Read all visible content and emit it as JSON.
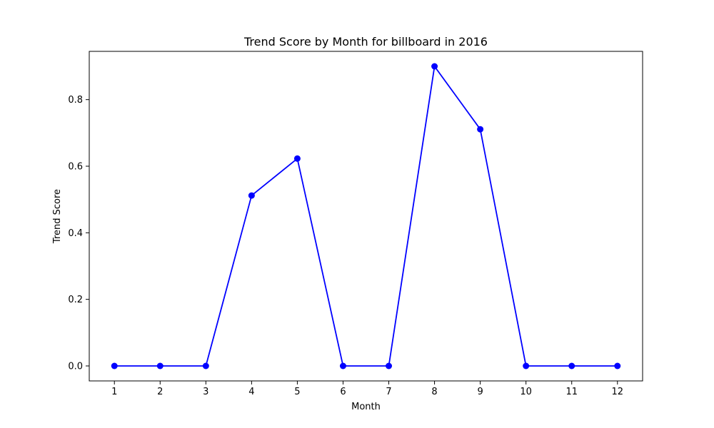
{
  "chart_data": {
    "type": "line",
    "title": "Trend Score by Month for billboard in 2016",
    "xlabel": "Month",
    "ylabel": "Trend Score",
    "x": [
      1,
      2,
      3,
      4,
      5,
      6,
      7,
      8,
      9,
      10,
      11,
      12
    ],
    "series": [
      {
        "values": [
          0,
          0,
          0,
          0.512,
          0.623,
          0,
          0,
          0.9,
          0.711,
          0,
          0,
          0
        ],
        "color": "#0000ff",
        "marker": "circle"
      }
    ],
    "xlim": [
      0.45,
      12.55
    ],
    "ylim": [
      -0.045,
      0.945
    ],
    "xticks": [
      "1",
      "2",
      "3",
      "4",
      "5",
      "6",
      "7",
      "8",
      "9",
      "10",
      "11",
      "12"
    ],
    "yticks": [
      "0.0",
      "0.2",
      "0.4",
      "0.6",
      "0.8"
    ],
    "grid": false,
    "legend": "none"
  }
}
